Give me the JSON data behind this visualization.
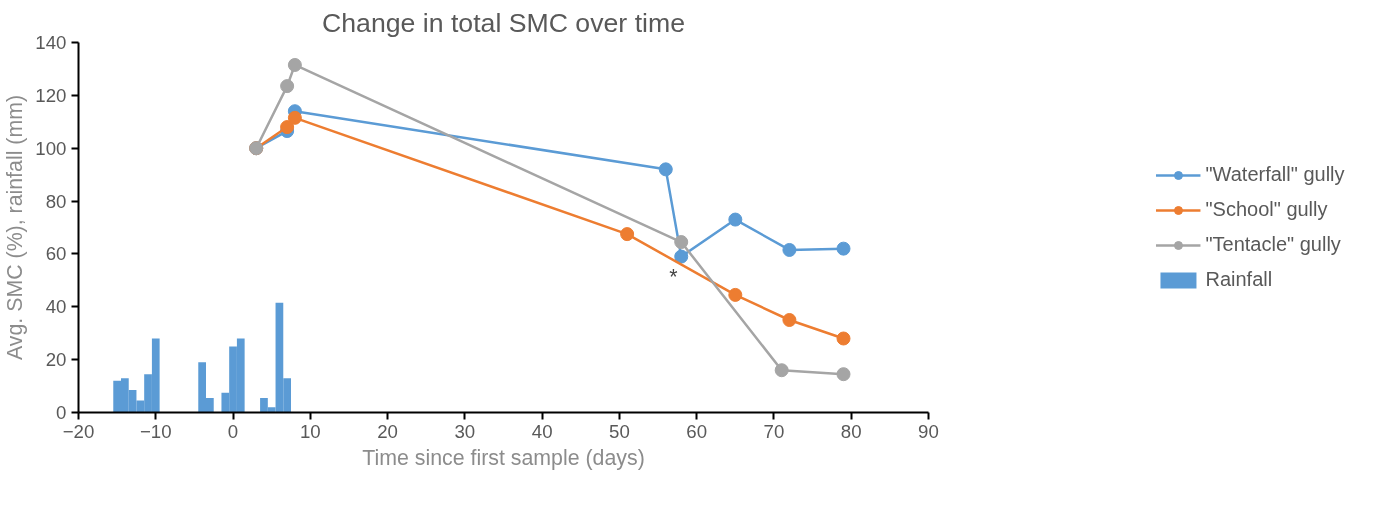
{
  "chart_data": {
    "type": "line",
    "title": "Change in total SMC over time",
    "xlabel": "Time since first sample (days)",
    "ylabel": "Avg. SMC (%), rainfall (mm)",
    "xlim": [
      -20,
      90
    ],
    "xticks": [
      -20,
      -10,
      0,
      10,
      20,
      30,
      40,
      50,
      60,
      70,
      80,
      90
    ],
    "ylim": [
      0,
      140
    ],
    "yticks": [
      0,
      20,
      40,
      60,
      80,
      100,
      120,
      140
    ],
    "grid": false,
    "legend": "right",
    "marker": "circle",
    "annotations": [
      "*"
    ],
    "series": [
      {
        "name": "\"Waterfall\" gully",
        "color": "#5b9bd5",
        "x": [
          3,
          7,
          8,
          56,
          58,
          65,
          72,
          79
        ],
        "values": [
          100,
          106.5,
          114,
          92,
          59,
          73,
          61.5,
          62
        ]
      },
      {
        "name": "\"School\" gully",
        "color": "#ed7d31",
        "x": [
          3,
          7,
          8,
          51,
          65,
          72,
          79
        ],
        "values": [
          100,
          108,
          111.5,
          67.5,
          44.5,
          35,
          28
        ]
      },
      {
        "name": "\"Tentacle\" gully",
        "color": "#a5a5a5",
        "x": [
          3,
          7,
          8,
          58,
          71,
          79
        ],
        "values": [
          100,
          123.5,
          131.5,
          64.5,
          16,
          14.5
        ]
      },
      {
        "name": "Rainfall",
        "type": "bar",
        "color": "#5b9bd5",
        "x": [
          -15,
          -14,
          -13,
          -12,
          -11,
          -10,
          -9,
          -8,
          -7,
          -6,
          -5,
          -4,
          -3,
          -2,
          -1,
          0,
          1,
          2,
          3,
          4,
          5,
          6,
          7
        ],
        "values": [
          12,
          13,
          8.5,
          4.5,
          14.5,
          28,
          0,
          0,
          0,
          0,
          0,
          19,
          5.5,
          0,
          7.5,
          25,
          28,
          0,
          0,
          5.5,
          2,
          41.5,
          13
        ]
      }
    ]
  }
}
